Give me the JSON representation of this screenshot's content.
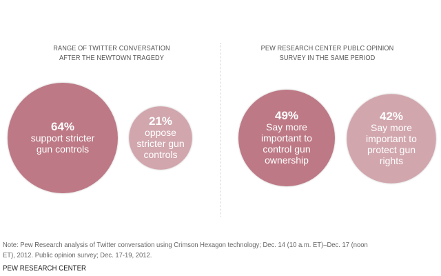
{
  "chart_data": {
    "type": "bubble",
    "panels": [
      {
        "title_lines": [
          "RANGE OF TWITTER CONVERSATION",
          "AFTER THE NEWTOWN TRAGEDY"
        ],
        "bubbles": [
          {
            "value": 64,
            "value_label": "64%",
            "label_lines": [
              "support stricter",
              "gun controls"
            ],
            "color": "#bd7985"
          },
          {
            "value": 21,
            "value_label": "21%",
            "label_lines": [
              "oppose",
              "stricter gun",
              "controls"
            ],
            "color": "#d1a6ad"
          }
        ]
      },
      {
        "title_lines": [
          "PEW RESEARCH CENTER PUBLC OPINION",
          "SURVEY IN THE SAME PERIOD"
        ],
        "bubbles": [
          {
            "value": 49,
            "value_label": "49%",
            "label_lines": [
              "Say more",
              "important to",
              "control gun",
              "ownership"
            ],
            "color": "#bd7985"
          },
          {
            "value": 42,
            "value_label": "42%",
            "label_lines": [
              "Say more",
              "important to",
              "protect gun",
              "rights"
            ],
            "color": "#d1a6ad"
          }
        ]
      }
    ],
    "units": "percent"
  },
  "note": "Note: Pew Research analysis of Twitter conversation using Crimson Hexagon technology; Dec. 14 (10 a.m. ET)–Dec. 17 (noon ET), 2012. Public opinion survey; Dec. 17-19, 2012.",
  "note_lines": [
    "Note: Pew Research analysis of Twitter conversation using Crimson Hexagon technology; Dec. 14 (10 a.m. ET)–Dec. 17 (noon",
    "ET), 2012. Public opinion survey; Dec. 17-19, 2012."
  ],
  "source": "PEW RESEARCH CENTER"
}
